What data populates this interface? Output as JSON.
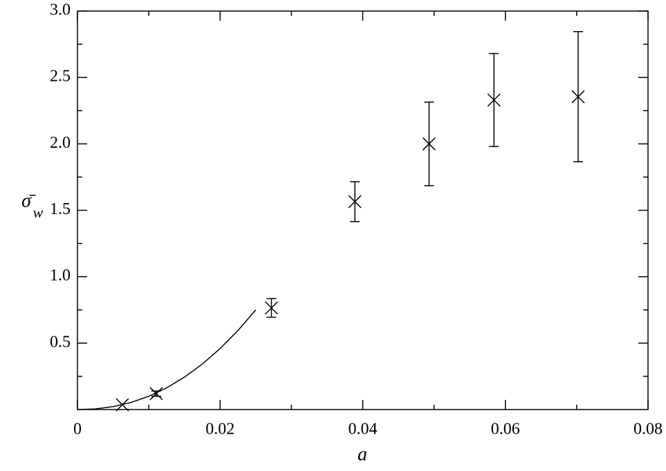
{
  "chart_data": {
    "type": "scatter",
    "x_label": "a",
    "y_label": "σ̄",
    "y_label_subscript": "w",
    "xlim": [
      0,
      0.08
    ],
    "ylim": [
      0,
      3.0
    ],
    "xticks": [
      0,
      0.02,
      0.04,
      0.06,
      0.08
    ],
    "yticks": [
      0.5,
      {
        "value": 1,
        "label": "1.0"
      },
      1.5,
      {
        "value": 2,
        "label": "2.0"
      },
      2.5,
      {
        "value": 3,
        "label": "3.0"
      }
    ],
    "x_minor_ticks": [
      0.01,
      0.03,
      0.05,
      0.07
    ],
    "y_minor_ticks": [
      0.25,
      0.75,
      1.25,
      1.75,
      2.25,
      2.75
    ],
    "color": "#000000",
    "points": {
      "x": [
        0.0063,
        0.01105,
        0.0272,
        0.0389,
        0.0493,
        0.0584,
        0.0702
      ],
      "y": [
        0.036,
        0.12,
        0.765,
        1.565,
        2.0,
        2.33,
        2.355
      ],
      "error": [
        null,
        0.02,
        0.07,
        0.15,
        0.315,
        0.35,
        0.49
      ]
    },
    "curve": {
      "x": [
        0,
        0.0025,
        0.005,
        0.0075,
        0.01,
        0.0125,
        0.015,
        0.0175,
        0.02,
        0.0225,
        0.025
      ],
      "y": [
        0,
        0.0047,
        0.022,
        0.053,
        0.1,
        0.163,
        0.244,
        0.342,
        0.459,
        0.595,
        0.75
      ]
    }
  }
}
